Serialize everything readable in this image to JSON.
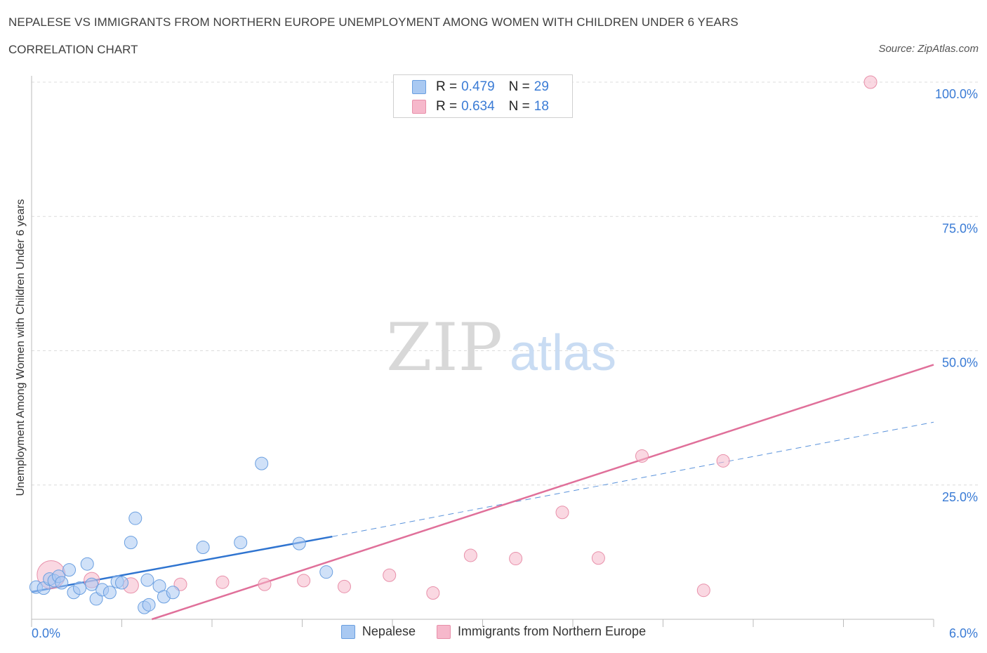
{
  "header": {
    "title": "NEPALESE VS IMMIGRANTS FROM NORTHERN EUROPE UNEMPLOYMENT AMONG WOMEN WITH CHILDREN UNDER 6 YEARS",
    "subtitle": "CORRELATION CHART",
    "source": "Source: ZipAtlas.com"
  },
  "watermark": {
    "zip": "ZIP",
    "atlas": "atlas"
  },
  "stats": [
    {
      "r_label": "R =",
      "r_value": "0.479",
      "n_label": "N =",
      "n_value": "29",
      "color": "#a9c9f2"
    },
    {
      "r_label": "R =",
      "r_value": "0.634",
      "n_label": "N =",
      "n_value": "18",
      "color": "#f6b8cb"
    }
  ],
  "legend": [
    {
      "label": "Nepalese",
      "color": "#a9c9f2"
    },
    {
      "label": "Immigrants from Northern Europe",
      "color": "#f6b8cb"
    }
  ],
  "chart_data": {
    "type": "scatter",
    "title": "NEPALESE VS IMMIGRANTS FROM NORTHERN EUROPE UNEMPLOYMENT AMONG WOMEN WITH CHILDREN UNDER 6 YEARS",
    "xlabel": "",
    "ylabel": "Unemployment Among Women with Children Under 6 years",
    "xlim": [
      0,
      6
    ],
    "ylim": [
      0,
      100
    ],
    "x_tick_labels": [
      "0.0%",
      "6.0%"
    ],
    "y_ticks": [
      25,
      50,
      75,
      100
    ],
    "y_tick_labels": [
      "25.0%",
      "50.0%",
      "75.0%",
      "100.0%"
    ],
    "series": [
      {
        "name": "Nepalese",
        "color": "#a9c9f2",
        "stroke": "#6a9fe0",
        "points": [
          [
            0.03,
            6.0
          ],
          [
            0.08,
            5.8
          ],
          [
            0.12,
            7.5
          ],
          [
            0.15,
            7.2
          ],
          [
            0.18,
            8.0
          ],
          [
            0.2,
            6.8
          ],
          [
            0.25,
            9.2
          ],
          [
            0.28,
            5.0
          ],
          [
            0.32,
            5.8
          ],
          [
            0.37,
            10.3
          ],
          [
            0.4,
            6.5
          ],
          [
            0.43,
            3.8
          ],
          [
            0.47,
            5.5
          ],
          [
            0.52,
            5.0
          ],
          [
            0.57,
            7.0
          ],
          [
            0.6,
            6.8
          ],
          [
            0.66,
            14.3
          ],
          [
            0.69,
            18.8
          ],
          [
            0.75,
            2.2
          ],
          [
            0.78,
            2.7
          ],
          [
            0.77,
            7.3
          ],
          [
            0.85,
            6.2
          ],
          [
            0.88,
            4.2
          ],
          [
            0.94,
            5.0
          ],
          [
            1.14,
            13.4
          ],
          [
            1.39,
            14.3
          ],
          [
            1.53,
            29.0
          ],
          [
            1.78,
            14.1
          ],
          [
            1.96,
            8.8
          ]
        ],
        "trend": {
          "x": [
            0,
            2
          ],
          "y": [
            5.1,
            15.4
          ],
          "dashed_extension_to": [
            6,
            36.7
          ]
        }
      },
      {
        "name": "Immigrants from Northern Europe",
        "color": "#f6b8cb",
        "stroke": "#e890aa",
        "points": [
          [
            0.13,
            8.3
          ],
          [
            0.4,
            7.3
          ],
          [
            0.66,
            6.3
          ],
          [
            0.99,
            6.5
          ],
          [
            1.27,
            6.9
          ],
          [
            1.55,
            6.5
          ],
          [
            1.81,
            7.2
          ],
          [
            2.08,
            6.1
          ],
          [
            2.38,
            8.2
          ],
          [
            2.67,
            4.9
          ],
          [
            2.92,
            11.9
          ],
          [
            3.22,
            11.3
          ],
          [
            3.53,
            19.9
          ],
          [
            3.77,
            11.4
          ],
          [
            4.06,
            30.4
          ],
          [
            4.47,
            5.4
          ],
          [
            4.6,
            29.5
          ],
          [
            5.58,
            100.0
          ]
        ],
        "point_sizes": [
          20,
          11,
          11,
          9,
          9,
          9,
          9,
          9,
          9,
          9,
          9,
          9,
          9,
          9,
          9,
          9,
          9,
          9
        ],
        "trend": {
          "x": [
            0.8,
            6
          ],
          "y": [
            0,
            47.4
          ]
        }
      }
    ]
  }
}
